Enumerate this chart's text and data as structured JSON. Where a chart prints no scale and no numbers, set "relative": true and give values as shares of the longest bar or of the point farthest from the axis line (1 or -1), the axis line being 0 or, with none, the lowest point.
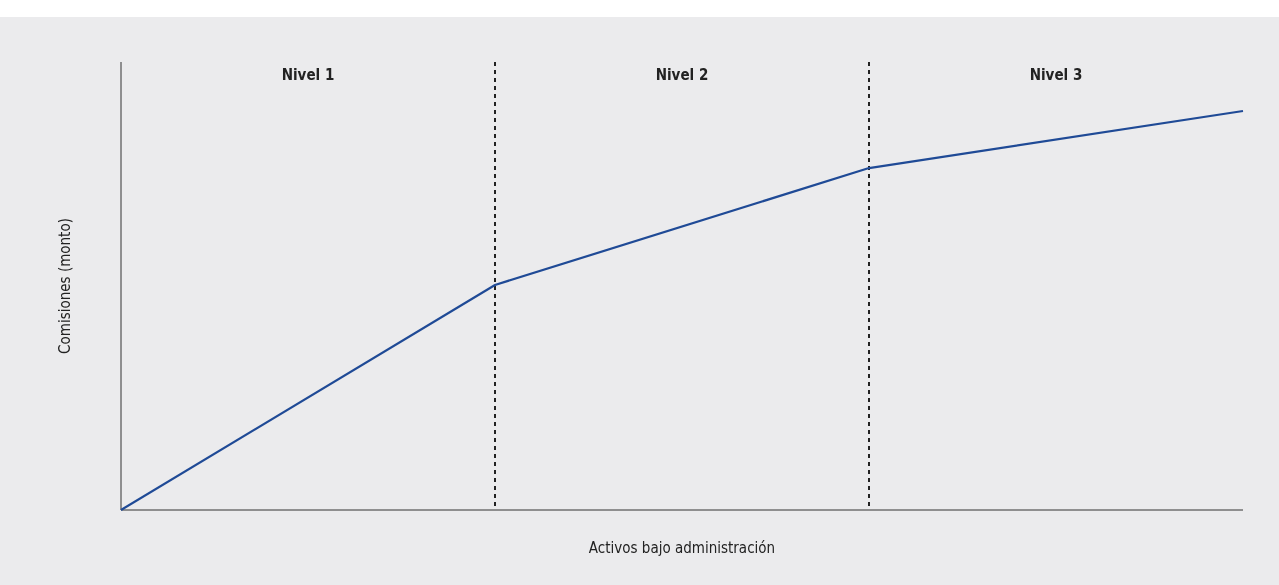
{
  "chart_data": {
    "type": "line",
    "relative": true,
    "xlabel": "Activos bajo administración",
    "ylabel": "Comisiones (monto)",
    "categories": [
      null,
      null,
      null,
      null
    ],
    "series": [
      {
        "color": "#1f4a96",
        "values": [
          0,
          0.564,
          0.857,
          1
        ]
      }
    ],
    "annotations": [
      "Nivel 1",
      "Nivel 2",
      "Nivel 3"
    ]
  }
}
